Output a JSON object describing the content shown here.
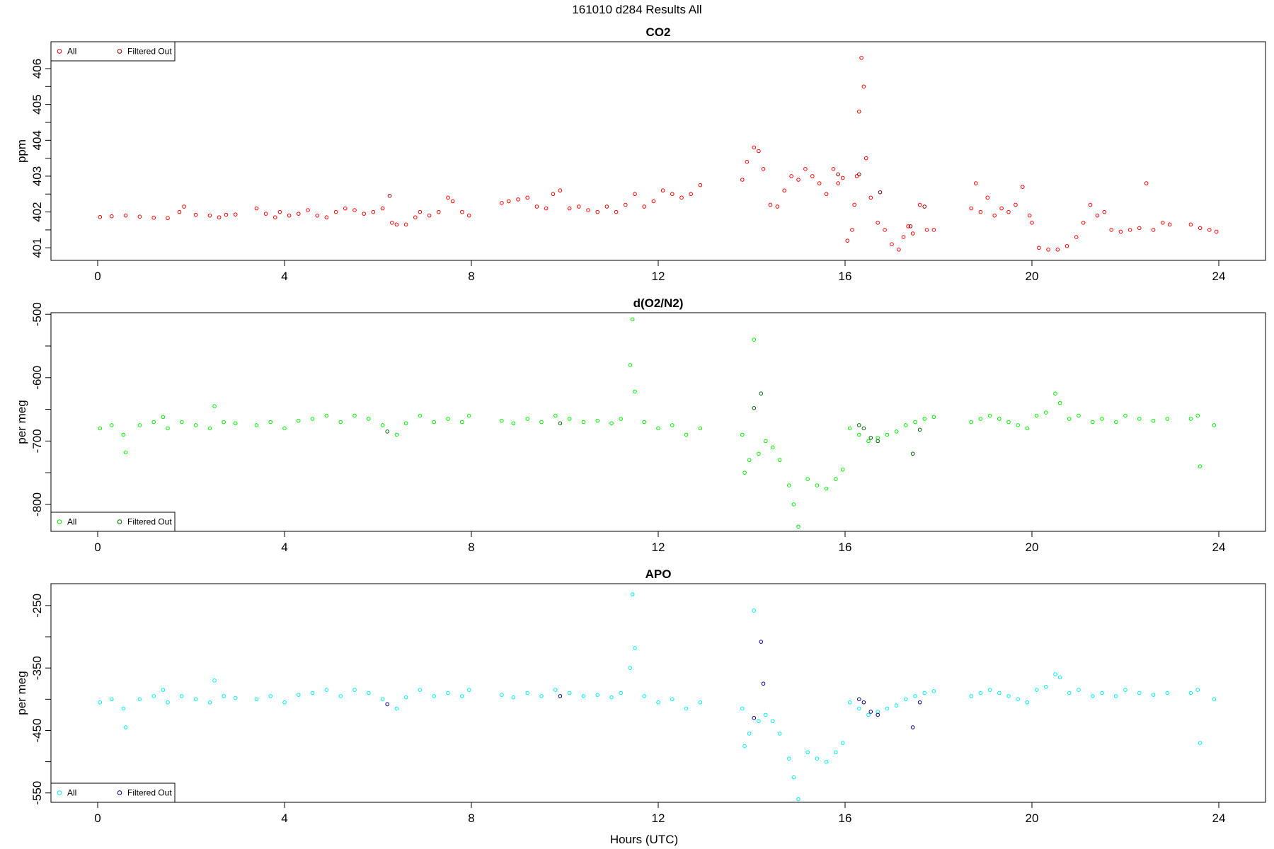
{
  "figure": {
    "title": "161010   d284   Results All",
    "xlabel": "Hours (UTC)"
  },
  "chart_data": [
    {
      "type": "scatter",
      "title": "CO2",
      "ylabel": "ppm",
      "xlabel": "",
      "xlim": [
        -1,
        25
      ],
      "ylim": [
        400.65,
        406.75
      ],
      "xticks": [
        0,
        4,
        8,
        12,
        16,
        20,
        24
      ],
      "yticks": [
        401,
        402,
        403,
        404,
        405,
        406
      ],
      "legend": {
        "placement": "top-left",
        "entries": [
          "All",
          "Filtered Out"
        ]
      },
      "colors": {
        "all": "#ff0000",
        "filtered": "#8b0000"
      },
      "series": [
        {
          "name": "All",
          "x": [
            0.05,
            0.3,
            0.6,
            0.9,
            1.2,
            1.5,
            1.75,
            1.85,
            2.1,
            2.4,
            2.6,
            2.75,
            2.95,
            3.4,
            3.6,
            3.8,
            3.9,
            4.1,
            4.3,
            4.5,
            4.7,
            4.9,
            5.1,
            5.3,
            5.5,
            5.7,
            5.9,
            6.1,
            6.3,
            6.4,
            6.6,
            6.8,
            6.9,
            7.1,
            7.3,
            7.5,
            7.6,
            7.8,
            7.95,
            8.65,
            8.8,
            9.0,
            9.2,
            9.4,
            9.6,
            9.75,
            9.9,
            10.1,
            10.3,
            10.5,
            10.7,
            10.9,
            11.1,
            11.3,
            11.5,
            11.7,
            11.9,
            12.1,
            12.3,
            12.5,
            12.7,
            12.9,
            13.8,
            13.9,
            14.05,
            14.15,
            14.25,
            14.4,
            14.55,
            14.7,
            14.85,
            15.0,
            15.15,
            15.3,
            15.45,
            15.6,
            15.75,
            15.85,
            15.95,
            16.05,
            16.15,
            16.2,
            16.25,
            16.3,
            16.35,
            16.4,
            16.45,
            16.55,
            16.7,
            16.85,
            17.0,
            17.15,
            17.25,
            17.35,
            17.45,
            17.6,
            17.75,
            17.9,
            18.7,
            18.8,
            18.9,
            19.05,
            19.2,
            19.35,
            19.5,
            19.65,
            19.8,
            19.95,
            20.0,
            20.15,
            20.35,
            20.55,
            20.75,
            20.95,
            21.1,
            21.25,
            21.4,
            21.55,
            21.7,
            21.9,
            22.1,
            22.3,
            22.45,
            22.6,
            22.8,
            22.95,
            23.4,
            23.6,
            23.8,
            23.95
          ],
          "y": [
            401.86,
            401.88,
            401.9,
            401.87,
            401.84,
            401.83,
            402.0,
            402.15,
            401.92,
            401.9,
            401.85,
            401.92,
            401.93,
            402.1,
            401.95,
            401.85,
            402.0,
            401.9,
            401.95,
            402.05,
            401.9,
            401.85,
            402.0,
            402.1,
            402.05,
            401.95,
            402.0,
            402.1,
            401.7,
            401.65,
            401.65,
            401.85,
            402.0,
            401.9,
            402.0,
            402.4,
            402.3,
            402.0,
            401.9,
            402.25,
            402.3,
            402.35,
            402.4,
            402.15,
            402.1,
            402.5,
            402.6,
            402.1,
            402.15,
            402.05,
            402.0,
            402.15,
            402.0,
            402.2,
            402.5,
            402.15,
            402.3,
            402.6,
            402.5,
            402.4,
            402.5,
            402.75,
            402.9,
            403.4,
            403.8,
            403.7,
            403.2,
            402.2,
            402.15,
            402.6,
            403.0,
            402.9,
            403.2,
            403.0,
            402.8,
            402.5,
            403.2,
            402.8,
            402.95,
            401.2,
            401.5,
            402.2,
            403.0,
            404.8,
            406.3,
            405.5,
            403.5,
            402.4,
            401.7,
            401.5,
            401.1,
            400.95,
            401.3,
            401.6,
            401.4,
            402.2,
            401.5,
            401.5,
            402.1,
            402.8,
            402.0,
            402.4,
            401.9,
            402.1,
            402.0,
            402.2,
            402.7,
            401.9,
            401.7,
            401.0,
            400.95,
            400.95,
            401.05,
            401.3,
            401.7,
            402.2,
            401.9,
            402.0,
            401.5,
            401.45,
            401.5,
            401.55,
            402.8,
            401.5,
            401.7,
            401.65,
            401.65,
            401.55,
            401.5,
            401.45
          ]
        },
        {
          "name": "Filtered Out",
          "x": [
            6.25,
            15.85,
            16.3,
            16.75,
            17.4,
            17.7
          ],
          "y": [
            402.45,
            403.05,
            403.05,
            402.55,
            401.6,
            402.15
          ]
        }
      ]
    },
    {
      "type": "scatter",
      "title": "d(O2/N2)",
      "ylabel": "per meg",
      "xlabel": "",
      "xlim": [
        -1,
        25
      ],
      "ylim": [
        -842.5,
        -497.5
      ],
      "xticks": [
        0,
        4,
        8,
        12,
        16,
        20,
        24
      ],
      "yticks": [
        -500,
        -600,
        -700,
        -800
      ],
      "legend": {
        "placement": "bottom-left",
        "entries": [
          "All",
          "Filtered Out"
        ]
      },
      "colors": {
        "all": "#00ee00",
        "filtered": "#006400"
      },
      "series": [
        {
          "name": "All",
          "x": [
            0.05,
            0.3,
            0.55,
            0.6,
            0.9,
            1.2,
            1.4,
            1.5,
            1.8,
            2.1,
            2.4,
            2.5,
            2.7,
            2.95,
            3.4,
            3.7,
            4.0,
            4.3,
            4.6,
            4.9,
            5.2,
            5.5,
            5.8,
            6.1,
            6.4,
            6.6,
            6.9,
            7.2,
            7.5,
            7.8,
            7.95,
            8.65,
            8.9,
            9.2,
            9.5,
            9.8,
            10.1,
            10.4,
            10.7,
            11.0,
            11.2,
            11.4,
            11.45,
            11.5,
            11.7,
            12.0,
            12.3,
            12.6,
            12.9,
            13.8,
            13.85,
            13.95,
            14.05,
            14.15,
            14.3,
            14.45,
            14.6,
            14.8,
            14.9,
            15.0,
            15.2,
            15.4,
            15.6,
            15.8,
            15.95,
            16.1,
            16.3,
            16.5,
            16.7,
            16.9,
            17.1,
            17.3,
            17.5,
            17.7,
            17.9,
            18.7,
            18.9,
            19.1,
            19.3,
            19.5,
            19.7,
            19.9,
            20.1,
            20.3,
            20.5,
            20.6,
            20.8,
            21.0,
            21.3,
            21.5,
            21.8,
            22.0,
            22.3,
            22.6,
            22.9,
            23.4,
            23.55,
            23.6,
            23.9
          ],
          "y": [
            -680,
            -675,
            -690,
            -718,
            -675,
            -670,
            -662,
            -680,
            -670,
            -675,
            -680,
            -645,
            -670,
            -672,
            -675,
            -670,
            -680,
            -668,
            -665,
            -660,
            -670,
            -660,
            -665,
            -675,
            -690,
            -672,
            -660,
            -670,
            -665,
            -670,
            -660,
            -668,
            -672,
            -665,
            -670,
            -660,
            -665,
            -670,
            -668,
            -672,
            -665,
            -580,
            -508,
            -622,
            -670,
            -680,
            -675,
            -690,
            -680,
            -690,
            -750,
            -730,
            -540,
            -720,
            -700,
            -710,
            -730,
            -770,
            -800,
            -835,
            -760,
            -770,
            -775,
            -760,
            -745,
            -680,
            -690,
            -700,
            -695,
            -690,
            -685,
            -675,
            -670,
            -665,
            -662,
            -670,
            -665,
            -660,
            -665,
            -670,
            -675,
            -680,
            -660,
            -655,
            -625,
            -640,
            -665,
            -660,
            -670,
            -665,
            -670,
            -660,
            -665,
            -668,
            -665,
            -665,
            -660,
            -740,
            -675
          ]
        },
        {
          "name": "Filtered Out",
          "x": [
            6.2,
            9.9,
            14.05,
            14.2,
            16.3,
            16.4,
            16.55,
            16.7,
            17.45,
            17.6
          ],
          "y": [
            -685,
            -672,
            -648,
            -625,
            -675,
            -680,
            -695,
            -700,
            -720,
            -682
          ]
        }
      ]
    },
    {
      "type": "scatter",
      "title": "APO",
      "ylabel": "per meg",
      "xlabel": "Hours (UTC)",
      "xlim": [
        -1,
        25
      ],
      "ylim": [
        -565,
        -215
      ],
      "xticks": [
        0,
        4,
        8,
        12,
        16,
        20,
        24
      ],
      "yticks": [
        -250,
        -350,
        -450,
        -550
      ],
      "legend": {
        "placement": "bottom-left",
        "entries": [
          "All",
          "Filtered Out"
        ]
      },
      "colors": {
        "all": "#00eeee",
        "filtered": "#00008b"
      },
      "series": [
        {
          "name": "All",
          "x": [
            0.05,
            0.3,
            0.55,
            0.6,
            0.9,
            1.2,
            1.4,
            1.5,
            1.8,
            2.1,
            2.4,
            2.5,
            2.7,
            2.95,
            3.4,
            3.7,
            4.0,
            4.3,
            4.6,
            4.9,
            5.2,
            5.5,
            5.8,
            6.1,
            6.4,
            6.6,
            6.9,
            7.2,
            7.5,
            7.8,
            7.95,
            8.65,
            8.9,
            9.2,
            9.5,
            9.8,
            10.1,
            10.4,
            10.7,
            11.0,
            11.2,
            11.4,
            11.45,
            11.5,
            11.7,
            12.0,
            12.3,
            12.6,
            12.9,
            13.8,
            13.85,
            13.95,
            14.05,
            14.15,
            14.3,
            14.45,
            14.6,
            14.8,
            14.9,
            15.0,
            15.2,
            15.4,
            15.6,
            15.8,
            15.95,
            16.1,
            16.3,
            16.5,
            16.7,
            16.9,
            17.1,
            17.3,
            17.5,
            17.7,
            17.9,
            18.7,
            18.9,
            19.1,
            19.3,
            19.5,
            19.7,
            19.9,
            20.1,
            20.3,
            20.5,
            20.6,
            20.8,
            21.0,
            21.3,
            21.5,
            21.8,
            22.0,
            22.3,
            22.6,
            22.9,
            23.4,
            23.55,
            23.6,
            23.9
          ],
          "y": [
            -405,
            -400,
            -415,
            -445,
            -400,
            -395,
            -385,
            -405,
            -395,
            -400,
            -405,
            -370,
            -395,
            -398,
            -400,
            -395,
            -405,
            -393,
            -390,
            -385,
            -395,
            -385,
            -390,
            -400,
            -415,
            -397,
            -385,
            -395,
            -390,
            -395,
            -385,
            -393,
            -397,
            -390,
            -395,
            -385,
            -390,
            -395,
            -393,
            -397,
            -390,
            -350,
            -232,
            -318,
            -395,
            -405,
            -400,
            -415,
            -405,
            -415,
            -475,
            -455,
            -258,
            -435,
            -425,
            -435,
            -455,
            -495,
            -525,
            -560,
            -485,
            -495,
            -500,
            -485,
            -470,
            -405,
            -415,
            -425,
            -420,
            -415,
            -410,
            -400,
            -395,
            -390,
            -387,
            -395,
            -390,
            -385,
            -390,
            -395,
            -400,
            -405,
            -385,
            -380,
            -360,
            -365,
            -390,
            -385,
            -395,
            -390,
            -395,
            -385,
            -390,
            -393,
            -390,
            -390,
            -385,
            -470,
            -400
          ]
        },
        {
          "name": "Filtered Out",
          "x": [
            6.2,
            9.9,
            14.05,
            14.2,
            14.25,
            16.3,
            16.4,
            16.55,
            16.7,
            17.45,
            17.6
          ],
          "y": [
            -408,
            -395,
            -430,
            -308,
            -375,
            -400,
            -405,
            -420,
            -425,
            -445,
            -405
          ]
        }
      ]
    }
  ]
}
